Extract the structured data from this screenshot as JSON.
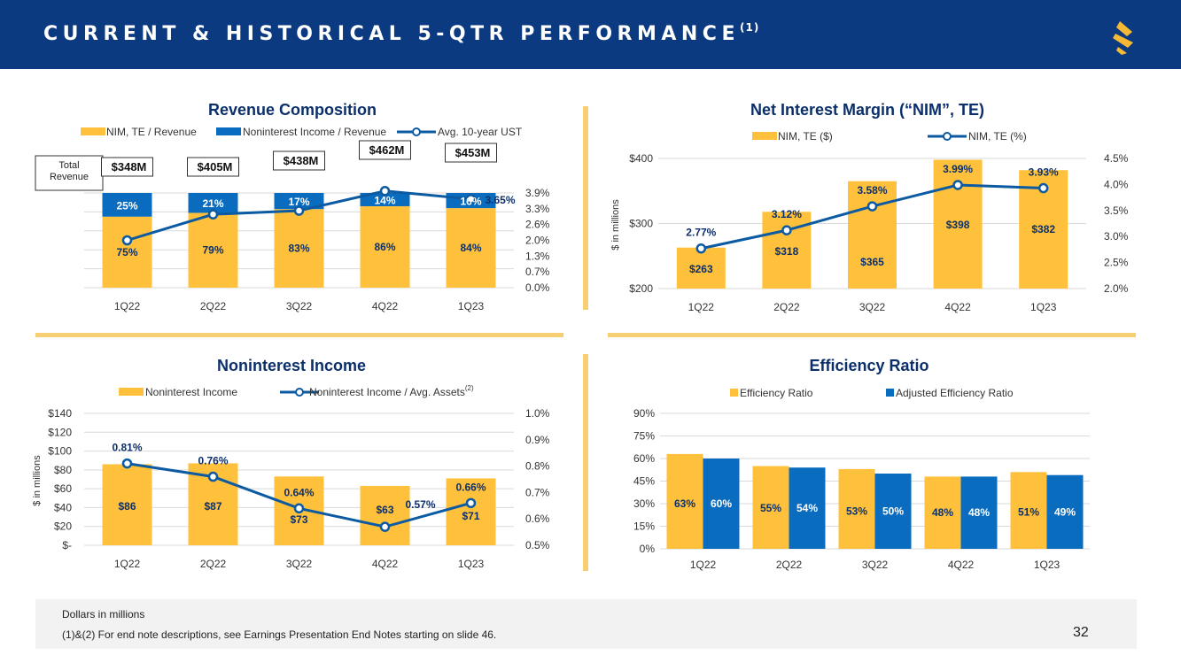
{
  "page": {
    "title": "CURRENT & HISTORICAL 5-QTR PERFORMANCE",
    "title_superscript": "(1)",
    "page_number": "32",
    "footer_lines": [
      "Dollars in millions",
      "(1)&(2)  For end note descriptions, see Earnings Presentation End Notes starting on slide 46."
    ],
    "colors": {
      "header": "#0b3a80",
      "gold": "#ffc13b",
      "blue": "#0a6cbf",
      "line": "#0b5aa2",
      "navy_text": "#0b2f6b",
      "divider": "#f5cf72"
    }
  },
  "chart_data": [
    {
      "id": "revenue",
      "type": "bar",
      "title": "Revenue Composition",
      "categories": [
        "1Q22",
        "2Q22",
        "3Q22",
        "4Q22",
        "1Q23"
      ],
      "legend": [
        "NIM, TE / Revenue",
        "Noninterest Income / Revenue",
        "Avg. 10-year UST"
      ],
      "series": [
        {
          "name": "NIM, TE / Revenue",
          "values": [
            75,
            79,
            83,
            86,
            84
          ],
          "labels": [
            "75%",
            "79%",
            "83%",
            "86%",
            "84%"
          ]
        },
        {
          "name": "Noninterest Income / Revenue",
          "values": [
            25,
            21,
            17,
            14,
            16
          ],
          "labels": [
            "25%",
            "21%",
            "17%",
            "14%",
            "16%"
          ]
        },
        {
          "name": "Avg. 10-year UST",
          "values": [
            1.95,
            3.02,
            3.17,
            3.98,
            3.65
          ],
          "labels": [
            "",
            "",
            "",
            "",
            "3.65%"
          ]
        }
      ],
      "totals_caption": "Total Revenue",
      "totals": [
        "$348M",
        "$405M",
        "$438M",
        "$462M",
        "$453M"
      ],
      "y2_ticks": [
        "0.0%",
        "0.7%",
        "1.3%",
        "2.0%",
        "2.6%",
        "3.3%",
        "3.9%"
      ],
      "y2lim": [
        0,
        3.9
      ],
      "ylim": [
        0,
        100
      ]
    },
    {
      "id": "nim",
      "type": "bar",
      "title": "Net Interest Margin (“NIM”, TE)",
      "categories": [
        "1Q22",
        "2Q22",
        "3Q22",
        "4Q22",
        "1Q23"
      ],
      "legend": [
        "NIM, TE ($)",
        "NIM, TE (%)"
      ],
      "ylabel": "$ in millions",
      "series": [
        {
          "name": "NIM, TE ($)",
          "values": [
            263,
            318,
            365,
            398,
            382
          ],
          "labels": [
            "$263",
            "$318",
            "$365",
            "$398",
            "$382"
          ]
        },
        {
          "name": "NIM, TE (%)",
          "values": [
            2.77,
            3.12,
            3.58,
            3.99,
            3.93
          ],
          "labels": [
            "2.77%",
            "3.12%",
            "3.58%",
            "3.99%",
            "3.93%"
          ]
        }
      ],
      "y_ticks": [
        "$200",
        "$300",
        "$400"
      ],
      "ylim": [
        200,
        400
      ],
      "y2_ticks": [
        "2.0%",
        "2.5%",
        "3.0%",
        "3.5%",
        "4.0%",
        "4.5%"
      ],
      "y2lim": [
        2.0,
        4.5
      ]
    },
    {
      "id": "nii",
      "type": "bar",
      "title": "Noninterest Income",
      "categories": [
        "1Q22",
        "2Q22",
        "3Q22",
        "4Q22",
        "1Q23"
      ],
      "legend": [
        "Noninterest Income",
        "Noninterest Income / Avg. Assets"
      ],
      "legend_superscript": "(2)",
      "ylabel": "$ in millions",
      "series": [
        {
          "name": "Noninterest Income",
          "values": [
            86,
            87,
            73,
            63,
            71
          ],
          "labels": [
            "$86",
            "$87",
            "$73",
            "$63",
            "$71"
          ]
        },
        {
          "name": "Noninterest Income / Avg. Assets",
          "values": [
            0.81,
            0.76,
            0.64,
            0.57,
            0.66
          ],
          "labels": [
            "0.81%",
            "0.76%",
            "0.64%",
            "0.57%",
            "0.66%"
          ]
        }
      ],
      "y_ticks": [
        "$-",
        "$20",
        "$40",
        "$60",
        "$80",
        "$100",
        "$120",
        "$140"
      ],
      "ylim": [
        0,
        140
      ],
      "y2_ticks": [
        "0.5%",
        "0.6%",
        "0.7%",
        "0.8%",
        "0.9%",
        "1.0%"
      ],
      "y2lim": [
        0.5,
        1.0
      ]
    },
    {
      "id": "eff",
      "type": "bar",
      "title": "Efficiency Ratio",
      "categories": [
        "1Q22",
        "2Q22",
        "3Q22",
        "4Q22",
        "1Q23"
      ],
      "legend": [
        "Efficiency Ratio",
        "Adjusted Efficiency Ratio"
      ],
      "series": [
        {
          "name": "Efficiency Ratio",
          "values": [
            63,
            55,
            53,
            48,
            51
          ],
          "labels": [
            "63%",
            "55%",
            "53%",
            "48%",
            "51%"
          ]
        },
        {
          "name": "Adjusted Efficiency Ratio",
          "values": [
            60,
            54,
            50,
            48,
            49
          ],
          "labels": [
            "60%",
            "54%",
            "50%",
            "48%",
            "49%"
          ]
        }
      ],
      "y_ticks": [
        "0%",
        "15%",
        "30%",
        "45%",
        "60%",
        "75%",
        "90%"
      ],
      "ylim": [
        0,
        90
      ]
    }
  ]
}
